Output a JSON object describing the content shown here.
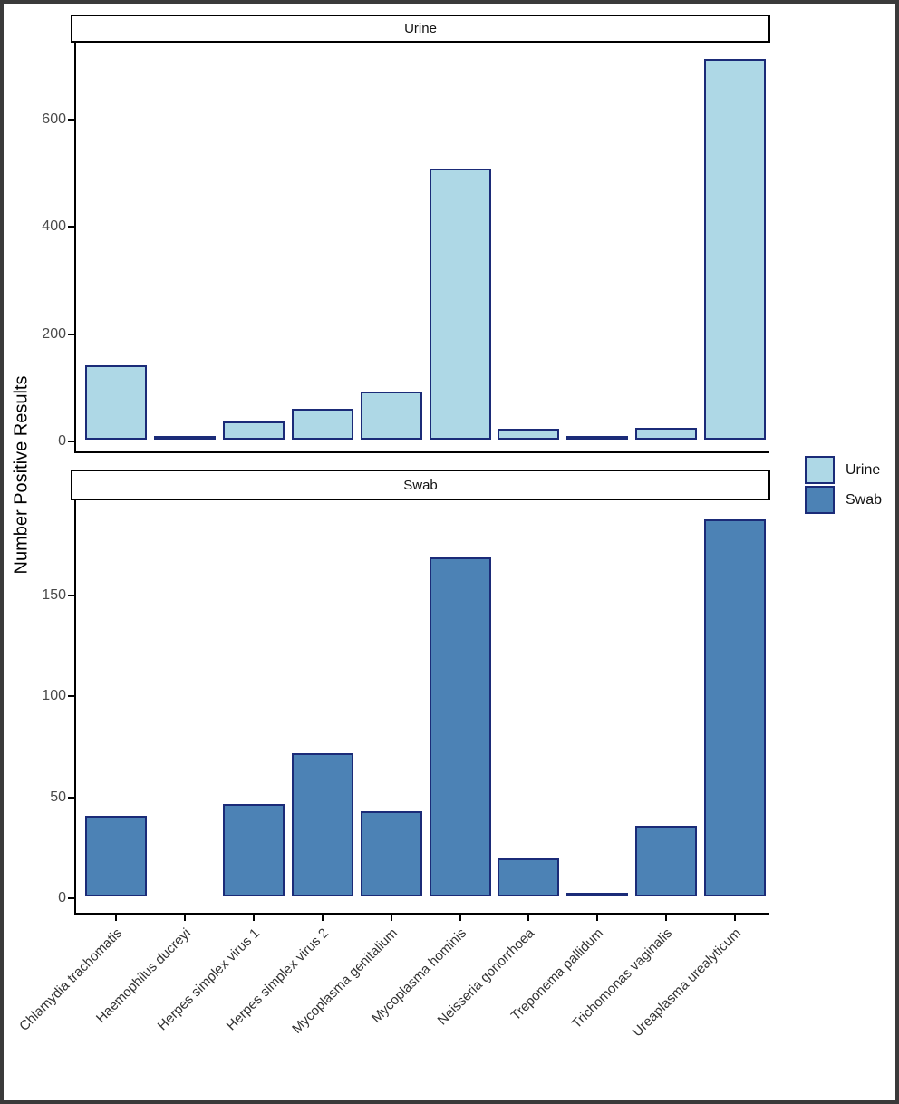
{
  "chart_data": {
    "type": "bar",
    "title": "",
    "ylabel": "Number Positive Results",
    "xlabel": "",
    "grid": false,
    "legend_position": "right",
    "facet_labels": [
      "Urine",
      "Swab"
    ],
    "categories": [
      "Chlamydia trachomatis",
      "Haemophilus ducreyi",
      "Herpes simplex virus 1",
      "Herpes simplex virus 2",
      "Mycoplasma genitalium",
      "Mycoplasma hominis",
      "Neisseria gonorrhoea",
      "Treponema pallidum",
      "Trichomonas vaginalis",
      "Ureaplasma urealyticum"
    ],
    "series": [
      {
        "name": "Urine",
        "facet": "Urine",
        "color": "#aed8e6",
        "values": [
          138,
          2,
          33,
          58,
          90,
          505,
          20,
          2,
          22,
          710
        ],
        "yticks": [
          0,
          200,
          400,
          600
        ],
        "ylim": [
          0,
          744
        ]
      },
      {
        "name": "Swab",
        "facet": "Swab",
        "color": "#4c82b5",
        "values": [
          40,
          0,
          46,
          71,
          42,
          168,
          19,
          2,
          35,
          187
        ],
        "yticks": [
          0,
          50,
          100,
          150
        ],
        "ylim": [
          0,
          197
        ]
      }
    ],
    "bar_outline_color": "#1b2b78",
    "axis_line_color": "#000000",
    "tick_label_color": "#4a4a4a"
  }
}
